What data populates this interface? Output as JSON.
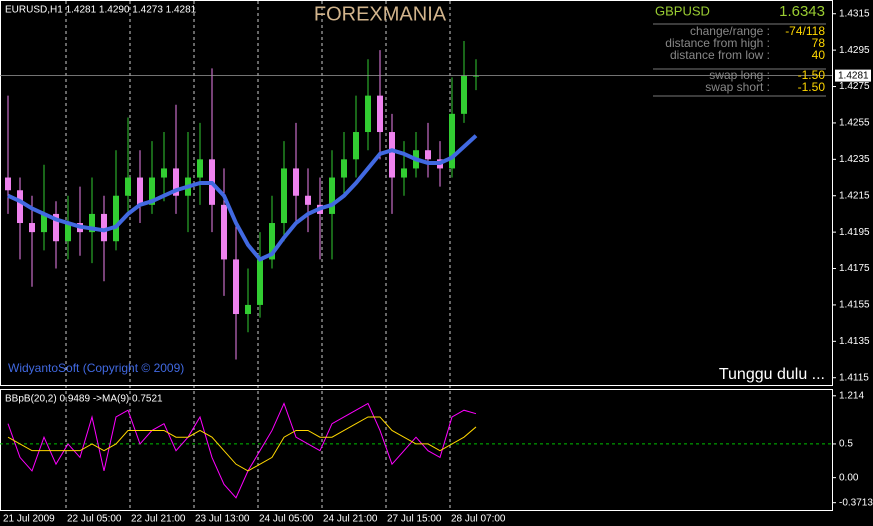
{
  "chart_data": [
    {
      "type": "candlestick",
      "title": "FOREXMANIA",
      "label": "EURUSD,H1  1.4281 1.4290 1.4273 1.4281",
      "up_color": "#32cd32",
      "down_color": "#ee82ee",
      "ma_color": "#4169e1",
      "grid": true,
      "x": [
        1.5,
        4.5,
        7.5,
        10.5,
        13.5,
        16.5,
        19.5,
        22.5,
        25.5,
        28.5,
        31.5,
        34.5,
        37.5,
        40.5,
        43.5,
        46.5,
        49.5,
        52.5,
        55.5,
        58.5,
        61.5,
        64.5,
        67.5,
        70.5,
        73.5,
        76.5,
        79.5,
        82.5,
        85.5,
        88.5,
        91.5,
        94.5,
        97.5,
        100.5,
        103.5,
        106.5,
        109.5,
        112.5,
        115.5,
        118.5
      ],
      "open": [
        1.4225,
        1.4218,
        1.42,
        1.4195,
        1.4205,
        1.419,
        1.42,
        1.4195,
        1.4205,
        1.419,
        1.4215,
        1.4225,
        1.421,
        1.4225,
        1.423,
        1.4215,
        1.4225,
        1.4235,
        1.421,
        1.418,
        1.415,
        1.4155,
        1.418,
        1.42,
        1.423,
        1.4215,
        1.421,
        1.4205,
        1.4225,
        1.4235,
        1.425,
        1.427,
        1.425,
        1.4225,
        1.423,
        1.424,
        1.4235,
        1.423,
        1.426,
        1.4281
      ],
      "high": [
        1.427,
        1.4225,
        1.4215,
        1.4232,
        1.4212,
        1.4215,
        1.422,
        1.4225,
        1.4215,
        1.424,
        1.4258,
        1.424,
        1.4245,
        1.425,
        1.4265,
        1.425,
        1.4255,
        1.4285,
        1.423,
        1.42,
        1.4175,
        1.4195,
        1.4215,
        1.4245,
        1.4255,
        1.423,
        1.4225,
        1.424,
        1.425,
        1.427,
        1.429,
        1.4295,
        1.426,
        1.4245,
        1.425,
        1.4255,
        1.4245,
        1.428,
        1.43,
        1.429
      ],
      "low": [
        1.4205,
        1.418,
        1.4165,
        1.4185,
        1.4175,
        1.418,
        1.4182,
        1.4178,
        1.4168,
        1.4185,
        1.4205,
        1.42,
        1.4205,
        1.4212,
        1.4205,
        1.4195,
        1.421,
        1.4195,
        1.416,
        1.4125,
        1.414,
        1.4148,
        1.4175,
        1.419,
        1.42,
        1.4195,
        1.418,
        1.418,
        1.4215,
        1.4225,
        1.424,
        1.4235,
        1.4205,
        1.4215,
        1.4225,
        1.4225,
        1.422,
        1.4225,
        1.4255,
        1.4273
      ],
      "close": [
        1.4218,
        1.42,
        1.4195,
        1.4205,
        1.419,
        1.42,
        1.4195,
        1.4205,
        1.419,
        1.4215,
        1.4225,
        1.421,
        1.4225,
        1.423,
        1.4215,
        1.4225,
        1.4235,
        1.421,
        1.418,
        1.415,
        1.4155,
        1.418,
        1.42,
        1.423,
        1.4215,
        1.421,
        1.4205,
        1.4225,
        1.4235,
        1.425,
        1.427,
        1.425,
        1.4225,
        1.423,
        1.424,
        1.4235,
        1.423,
        1.426,
        1.4281,
        1.4281
      ],
      "ma_values": [
        1.4215,
        1.4212,
        1.4208,
        1.4205,
        1.4202,
        1.42,
        1.4198,
        1.4197,
        1.4196,
        1.4198,
        1.4205,
        1.421,
        1.4212,
        1.4215,
        1.4218,
        1.422,
        1.4222,
        1.4222,
        1.4215,
        1.42,
        1.4188,
        1.418,
        1.4183,
        1.4192,
        1.42,
        1.4205,
        1.4208,
        1.421,
        1.4215,
        1.4222,
        1.423,
        1.4238,
        1.424,
        1.4238,
        1.4235,
        1.4233,
        1.4233,
        1.4236,
        1.4242,
        1.4248
      ],
      "xlim": [
        -0.5,
        207.5
      ],
      "ylim": [
        1.4111,
        1.4322
      ],
      "xticks": [
        {
          "value": 0,
          "label": "21 Jul 2009"
        },
        {
          "value": 16,
          "label": "22 Jul 05:00"
        },
        {
          "value": 32,
          "label": "22 Jul 21:00"
        },
        {
          "value": 48,
          "label": "23 Jul 13:00"
        },
        {
          "value": 64,
          "label": "24 Jul 05:00"
        },
        {
          "value": 80,
          "label": "24 Jul 21:00"
        },
        {
          "value": 96,
          "label": "27 Jul 15:00"
        },
        {
          "value": 112,
          "label": "28 Jul 07:00"
        }
      ],
      "yticks": [
        1.4315,
        1.4295,
        1.4275,
        1.4255,
        1.4235,
        1.4215,
        1.4195,
        1.4175,
        1.4155,
        1.4135,
        1.4115
      ],
      "annotations": [
        "WidyantoSoft (Copyright © 2009)",
        "Tunggu dulu ..."
      ],
      "info_panel": {
        "symbol": "GBPUSD",
        "price": "1.6343",
        "rows": [
          [
            "change/range :",
            "-74/118"
          ],
          [
            "distance from high :",
            "78"
          ],
          [
            "distance from low :",
            "40"
          ],
          [
            "swap long :",
            "-1.50"
          ],
          [
            "swap short :",
            "-1.50"
          ]
        ]
      }
    },
    {
      "type": "line",
      "label": "BBpB(20,2) 0.9489  ->MA(9) 0.7521",
      "x": [
        1.5,
        4.5,
        7.5,
        10.5,
        13.5,
        16.5,
        19.5,
        22.5,
        25.5,
        28.5,
        31.5,
        34.5,
        37.5,
        40.5,
        43.5,
        46.5,
        49.5,
        52.5,
        55.5,
        58.5,
        61.5,
        64.5,
        67.5,
        70.5,
        73.5,
        76.5,
        79.5,
        82.5,
        85.5,
        88.5,
        91.5,
        94.5,
        97.5,
        100.5,
        103.5,
        106.5,
        109.5,
        112.5,
        115.5,
        118.5
      ],
      "series": [
        {
          "color": "#ff00ff",
          "values": [
            0.8,
            0.3,
            0.1,
            0.6,
            0.2,
            0.5,
            0.3,
            0.9,
            0.1,
            0.9,
            1.0,
            0.5,
            0.7,
            0.8,
            0.4,
            0.6,
            0.9,
            0.3,
            -0.1,
            -0.3,
            0.1,
            0.4,
            0.7,
            1.1,
            0.6,
            0.5,
            0.4,
            0.8,
            0.9,
            1.0,
            1.1,
            0.7,
            0.2,
            0.4,
            0.6,
            0.4,
            0.3,
            0.9,
            1.0,
            0.9489
          ]
        },
        {
          "color": "#ffd700",
          "values": [
            0.6,
            0.5,
            0.4,
            0.4,
            0.4,
            0.4,
            0.4,
            0.5,
            0.4,
            0.5,
            0.7,
            0.7,
            0.7,
            0.7,
            0.6,
            0.6,
            0.7,
            0.6,
            0.4,
            0.2,
            0.1,
            0.2,
            0.3,
            0.6,
            0.7,
            0.7,
            0.6,
            0.6,
            0.7,
            0.8,
            0.9,
            0.9,
            0.7,
            0.6,
            0.5,
            0.5,
            0.4,
            0.5,
            0.6,
            0.7521
          ]
        }
      ],
      "xlim": [
        -0.5,
        207.5
      ],
      "ylim": [
        -0.48,
        1.3
      ],
      "yticks": [
        1.214,
        0.5,
        {
          "value": 0,
          "label": "0.00"
        },
        -0.3713
      ],
      "level": 0.5,
      "level_color": "#00c000"
    }
  ]
}
